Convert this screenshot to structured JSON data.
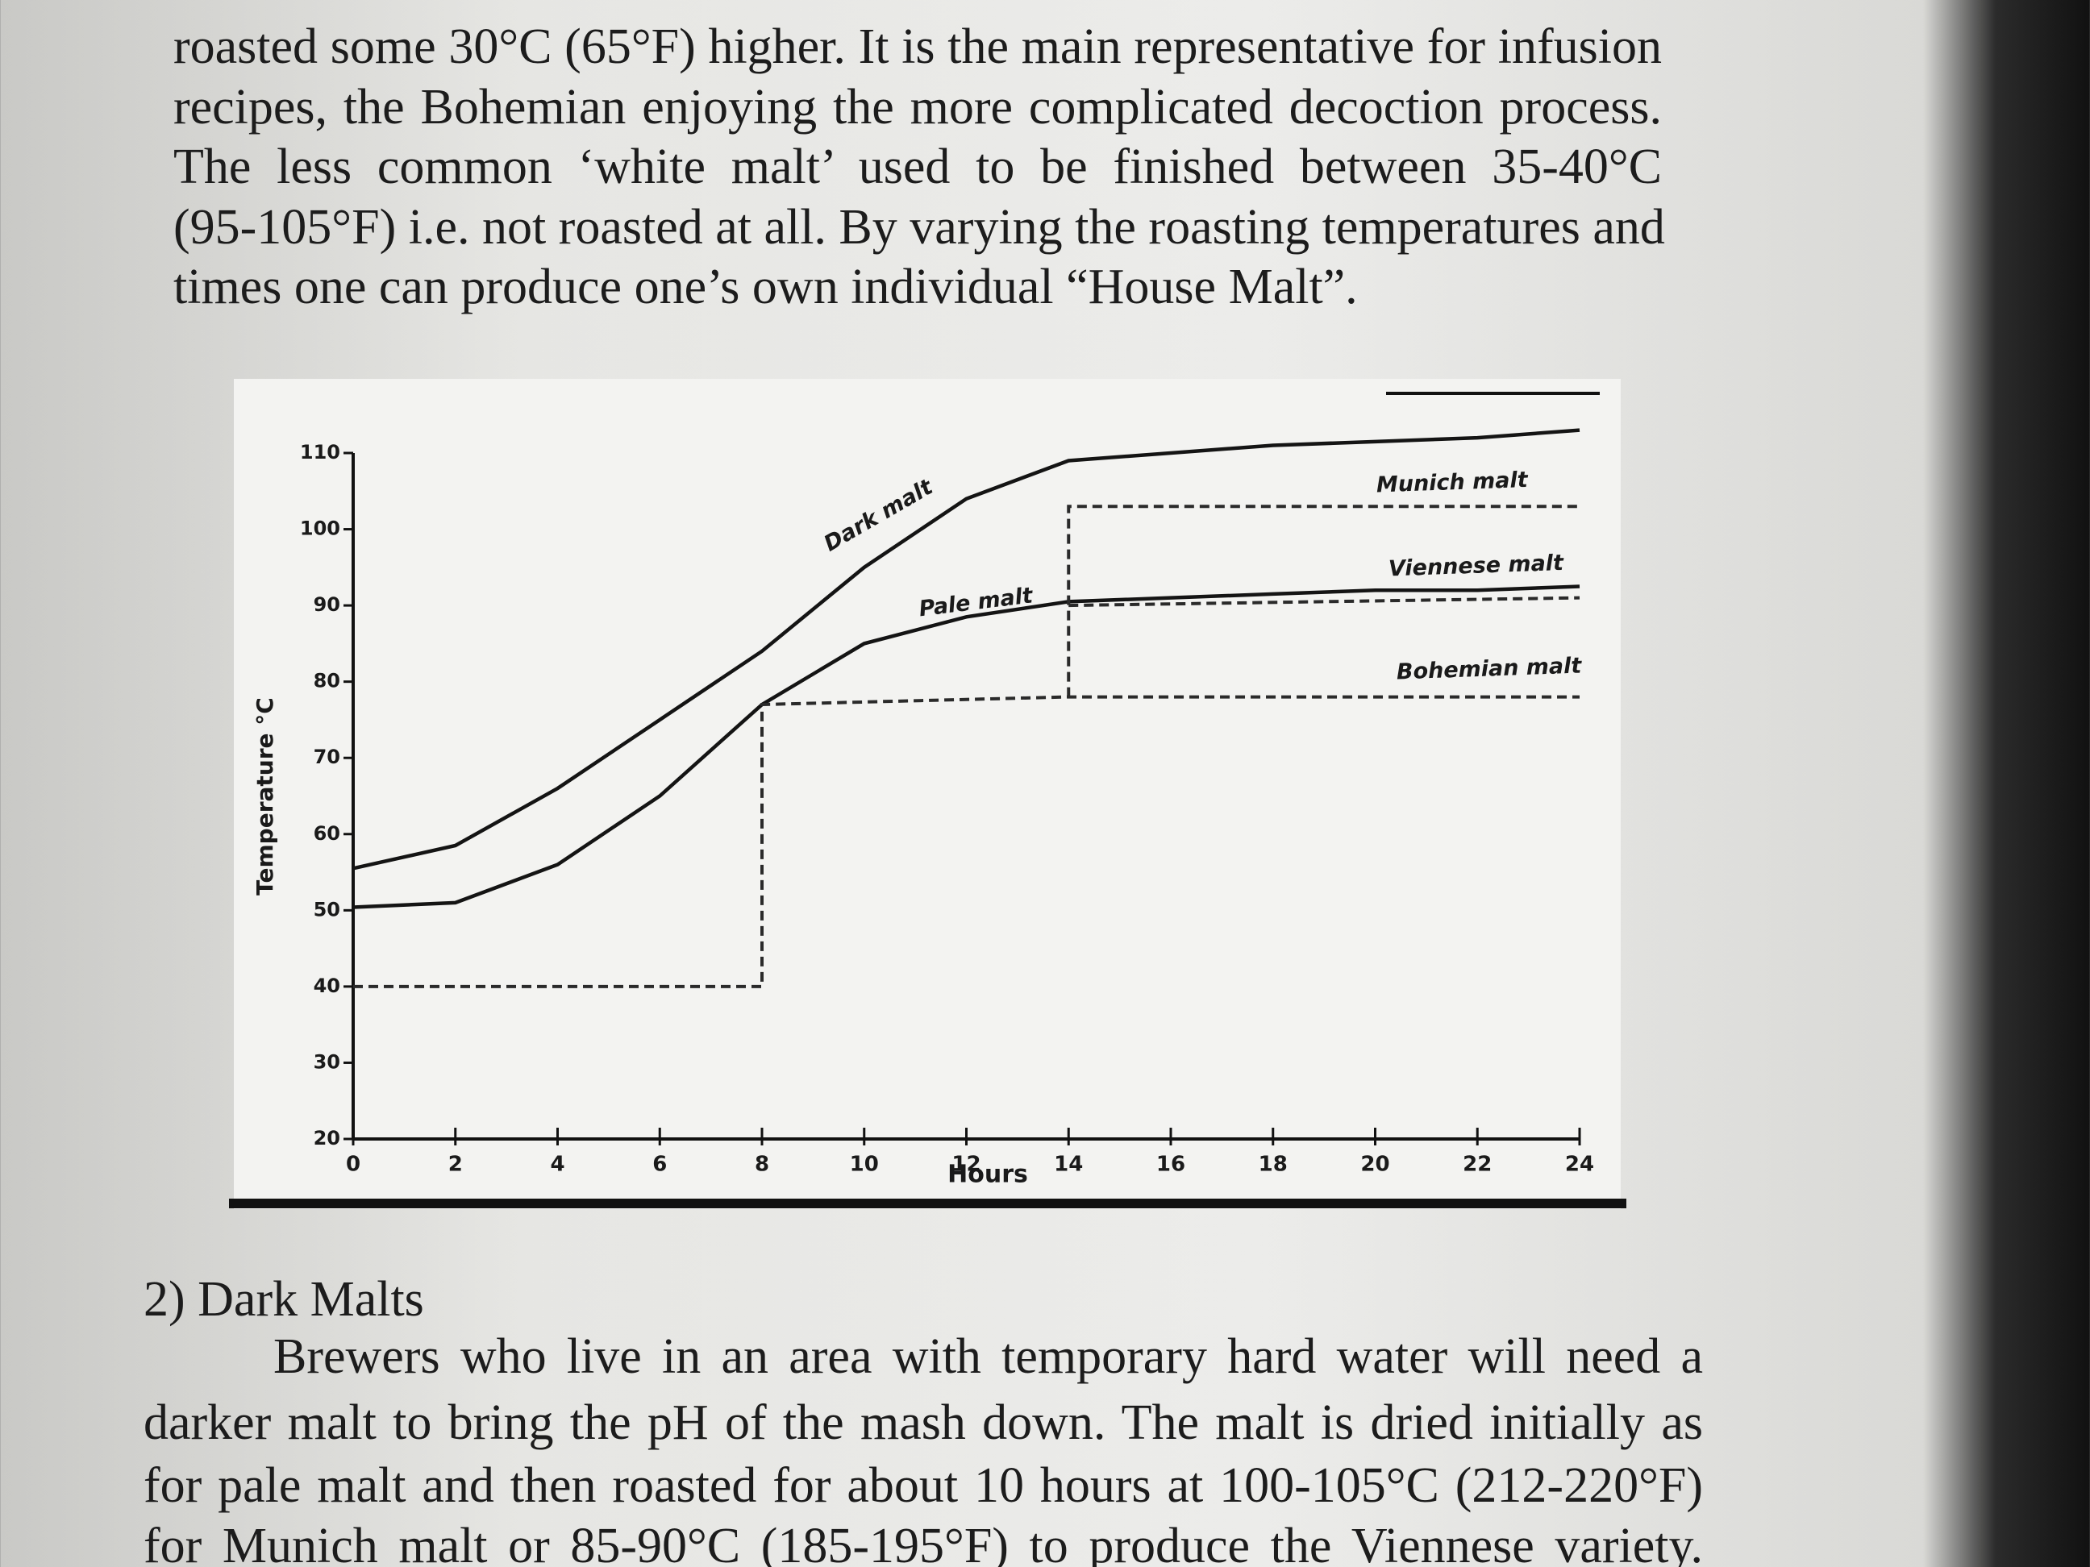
{
  "document": {
    "top_paragraph": [
      "roasted some 30°C (65°F) higher. It is the main representative for infusion",
      "recipes, the Bohemian enjoying the more complicated decoction process.",
      "The less common ‘white malt’ used to be finished between 35-40°C",
      "(95-105°F) i.e. not roasted at all. By varying the roasting temperatures and",
      "times one can produce one’s own individual “House Malt”."
    ],
    "heading": "2) Dark Malts",
    "body_paragraph": [
      "Brewers who live in an area with temporary hard water will need a",
      "darker malt to bring the pH of the mash down. The malt is dried initially as",
      "for pale malt and then roasted for about 10 hours at 100-105°C (212-220°F)",
      "for Munich malt or 85-90°C (185-195°F) to produce the Viennese variety."
    ]
  },
  "chart_data": {
    "type": "line",
    "x_label": "Hours",
    "y_label": "Temperature °C",
    "xlim": [
      0,
      24
    ],
    "ylim": [
      20,
      110
    ],
    "xticks": [
      0,
      2,
      4,
      6,
      8,
      10,
      12,
      14,
      16,
      18,
      20,
      22,
      24
    ],
    "yticks": [
      20,
      30,
      40,
      50,
      60,
      70,
      80,
      90,
      100,
      110
    ],
    "series": [
      {
        "name": "Dark malt",
        "color": "#141414",
        "dash": false,
        "x": [
          0,
          2,
          4,
          6,
          8,
          10,
          12,
          14,
          16,
          18,
          20,
          22,
          24
        ],
        "values": [
          55.5,
          58.5,
          66,
          75,
          84,
          95,
          104,
          109,
          110,
          111,
          111.5,
          112,
          113
        ]
      },
      {
        "name": "Pale malt",
        "color": "#141414",
        "dash": false,
        "x": [
          0,
          2,
          4,
          6,
          8,
          10,
          12,
          14,
          16,
          18,
          20,
          22,
          24
        ],
        "values": [
          50.4,
          51,
          56,
          65,
          77,
          85,
          88.5,
          90.5,
          91,
          91.5,
          92,
          92,
          92.5
        ]
      },
      {
        "name": "Bohemian malt",
        "color": "#2a2a2a",
        "dash": true,
        "x": [
          0,
          8,
          8,
          14,
          24
        ],
        "values": [
          40,
          40,
          77,
          78,
          78
        ]
      },
      {
        "name": "Viennese malt",
        "color": "#2a2a2a",
        "dash": true,
        "x": [
          14,
          24
        ],
        "values": [
          90,
          91
        ]
      },
      {
        "name": "Munich malt",
        "color": "#2a2a2a",
        "dash": true,
        "x": [
          14,
          14,
          24
        ],
        "values": [
          78,
          103,
          103
        ]
      }
    ]
  }
}
